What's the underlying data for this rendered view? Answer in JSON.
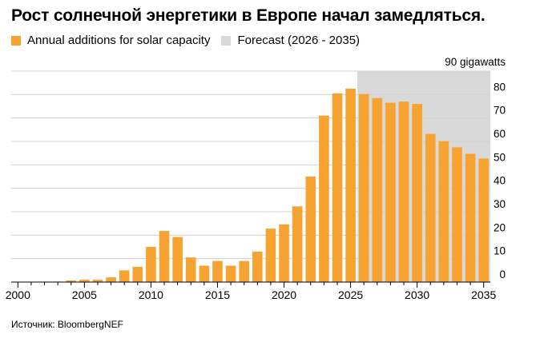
{
  "title": "Рост солнечной энергетики в Европе начал замедляться.",
  "source": "Источник: BloombergNEF",
  "colors": {
    "actual": "#f7a331",
    "forecast_bg": "#d9d9d9",
    "grid": "#d0d0d0",
    "axis": "#000000"
  },
  "chart_data": {
    "type": "bar",
    "title": "Рост солнечной энергетики в Европе начал замедляться.",
    "unit_label": "90 gigawatts",
    "legend": {
      "placement": "top-left",
      "items": [
        "Annual additions for solar capacity",
        "Forecast (2026 - 2035)"
      ]
    },
    "forecast_range": [
      2026,
      2035
    ],
    "x": [
      2000,
      2001,
      2002,
      2003,
      2004,
      2005,
      2006,
      2007,
      2008,
      2009,
      2010,
      2011,
      2012,
      2013,
      2014,
      2015,
      2016,
      2017,
      2018,
      2019,
      2020,
      2021,
      2022,
      2023,
      2024,
      2025,
      2026,
      2027,
      2028,
      2029,
      2030,
      2031,
      2032,
      2033,
      2034,
      2035
    ],
    "series": [
      {
        "name": "Annual additions for solar capacity",
        "values": [
          0.1,
          0.1,
          0.2,
          0.2,
          0.7,
          1.0,
          1.0,
          2.0,
          5.0,
          6.5,
          15.0,
          21.8,
          19.2,
          10.5,
          7.0,
          9.0,
          7.0,
          9.0,
          13.0,
          22.8,
          24.6,
          32.3,
          45.0,
          71.0,
          80.5,
          82.5,
          80.2,
          78.5,
          76.5,
          77.0,
          76.0,
          63.2,
          60.1,
          57.5,
          54.7,
          52.7
        ]
      }
    ],
    "xticks": [
      2000,
      2005,
      2010,
      2015,
      2020,
      2025,
      2030,
      2035
    ],
    "yticks": [
      0,
      10,
      20,
      30,
      40,
      50,
      60,
      70,
      80,
      90
    ],
    "ytick_labels": [
      "0",
      "10",
      "20",
      "30",
      "40",
      "50",
      "60",
      "70",
      "80"
    ],
    "ylim": [
      0,
      90
    ],
    "xlim": [
      1999.5,
      2035.5
    ],
    "grid": true,
    "y_axis_side": "right"
  }
}
